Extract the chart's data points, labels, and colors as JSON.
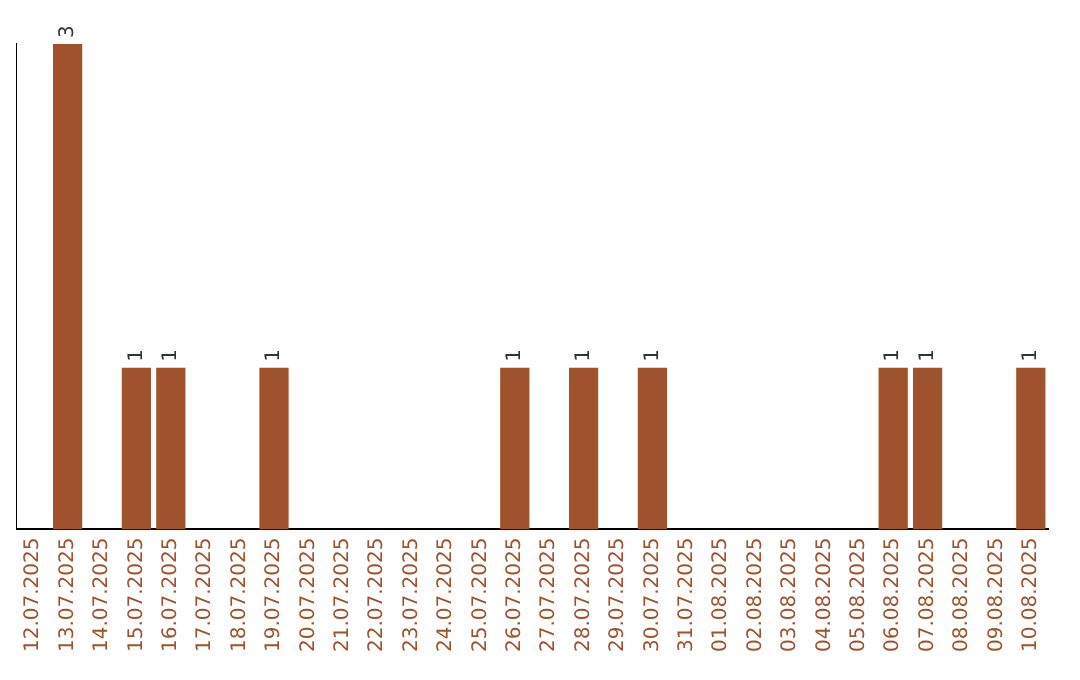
{
  "chart_data": {
    "type": "bar",
    "categories": [
      "12.07.2025",
      "13.07.2025",
      "14.07.2025",
      "15.07.2025",
      "16.07.2025",
      "17.07.2025",
      "18.07.2025",
      "19.07.2025",
      "20.07.2025",
      "21.07.2025",
      "22.07.2025",
      "23.07.2025",
      "24.07.2025",
      "25.07.2025",
      "26.07.2025",
      "27.07.2025",
      "28.07.2025",
      "29.07.2025",
      "30.07.2025",
      "31.07.2025",
      "01.08.2025",
      "02.08.2025",
      "03.08.2025",
      "04.08.2025",
      "05.08.2025",
      "06.08.2025",
      "07.08.2025",
      "08.08.2025",
      "09.08.2025",
      "10.08.2025"
    ],
    "values": [
      0,
      3,
      0,
      1,
      1,
      0,
      0,
      1,
      0,
      0,
      0,
      0,
      0,
      0,
      1,
      0,
      1,
      0,
      1,
      0,
      0,
      0,
      0,
      0,
      0,
      1,
      1,
      0,
      0,
      1
    ],
    "value_labels": [
      null,
      "3",
      null,
      "1",
      "1",
      null,
      null,
      "1",
      null,
      null,
      null,
      null,
      null,
      null,
      "1",
      null,
      "1",
      null,
      "1",
      null,
      null,
      null,
      null,
      null,
      null,
      "1",
      "1",
      null,
      null,
      "1"
    ],
    "color": "#a0522d",
    "tick_labels": "x"
  }
}
